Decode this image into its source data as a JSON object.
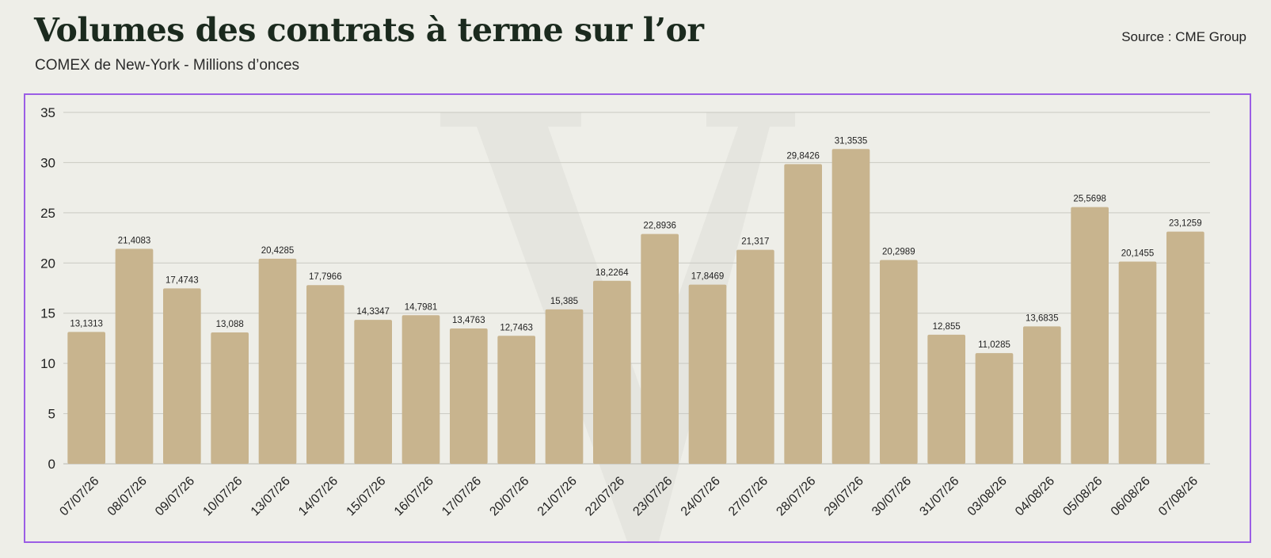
{
  "header": {
    "title": "Volumes des contrats à terme sur l’or",
    "subtitle": "COMEX de New-York - Millions d’onces",
    "source": "Source : CME Group"
  },
  "colors": {
    "bar": "#c8b48e",
    "grid": "#c9c9c2",
    "text": "#222222",
    "frame": "#9b5de5",
    "background": "#eeeee8"
  },
  "chart_data": {
    "type": "bar",
    "title": "Volumes des contrats à terme sur l’or",
    "ylim": [
      0,
      35
    ],
    "yticks": [
      0,
      5,
      10,
      15,
      20,
      25,
      30,
      35
    ],
    "grid": true,
    "categories": [
      "07/07/26",
      "08/07/26",
      "09/07/26",
      "10/07/26",
      "13/07/26",
      "14/07/26",
      "15/07/26",
      "16/07/26",
      "17/07/26",
      "20/07/26",
      "21/07/26",
      "22/07/26",
      "23/07/26",
      "24/07/26",
      "27/07/26",
      "28/07/26",
      "29/07/26",
      "30/07/26",
      "31/07/26",
      "03/08/26",
      "04/08/26",
      "05/08/26",
      "06/08/26",
      "07/08/26"
    ],
    "values": [
      13.1313,
      21.4083,
      17.4743,
      13.088,
      20.4285,
      17.7966,
      14.3347,
      14.7981,
      13.4763,
      12.7463,
      15.385,
      18.2264,
      22.8936,
      17.8469,
      21.317,
      29.8426,
      31.3535,
      20.2989,
      12.855,
      11.0285,
      13.6835,
      25.5698,
      20.1455,
      23.1259
    ],
    "labels": [
      "13,1313",
      "21,4083",
      "17,4743",
      "13,088",
      "20,4285",
      "17,7966",
      "14,3347",
      "14,7981",
      "13,4763",
      "12,7463",
      "15,385",
      "18,2264",
      "22,8936",
      "17,8469",
      "21,317",
      "29,8426",
      "31,3535",
      "20,2989",
      "12,855",
      "11,0285",
      "13,6835",
      "25,5698",
      "20,1455",
      "23,1259"
    ]
  }
}
